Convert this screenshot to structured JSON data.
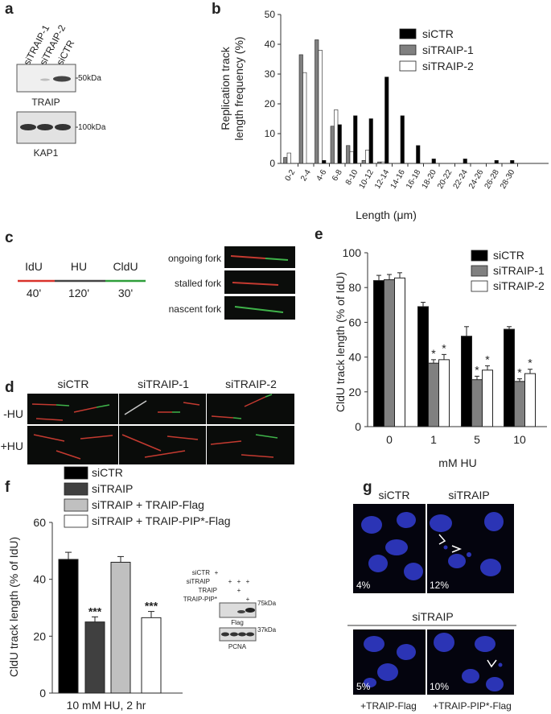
{
  "panel_labels": {
    "a": "a",
    "b": "b",
    "c": "c",
    "d": "d",
    "e": "e",
    "f": "f",
    "g": "g"
  },
  "panel_a": {
    "lanes": [
      "siTRAIP-1",
      "siTRAIP-2",
      "siCTR"
    ],
    "blot1": {
      "label": "TRAIP",
      "marker": "50kDa"
    },
    "blot2": {
      "label": "KAP1",
      "marker": "100kDa"
    }
  },
  "panel_c": {
    "segments": [
      "IdU",
      "HU",
      "CldU"
    ],
    "times": [
      "40'",
      "120'",
      "30'"
    ],
    "fork_labels": [
      "ongoing fork",
      "stalled fork",
      "nascent fork"
    ],
    "colors": {
      "idu": "#d9322b",
      "hu": "#444444",
      "cldu": "#2e9e3a"
    }
  },
  "panel_d": {
    "columns": [
      "siCTR",
      "siTRAIP-1",
      "siTRAIP-2"
    ],
    "rows": [
      "-HU",
      "+HU"
    ]
  },
  "panel_g": {
    "top_labels": [
      "siCTR",
      "siTRAIP"
    ],
    "top_pcts": [
      "4%",
      "12%"
    ],
    "bottom_header": "siTRAIP",
    "bottom_pcts": [
      "5%",
      "10%"
    ],
    "bottom_labels": [
      "+TRAIP-Flag",
      "+TRAIP-PIP*-Flag"
    ]
  },
  "panel_f_blot": {
    "rows": [
      {
        "label": "siCTR",
        "marks": [
          "+",
          "",
          "",
          ""
        ]
      },
      {
        "label": "siTRAIP",
        "marks": [
          "",
          "+",
          "+",
          "+"
        ]
      },
      {
        "label": "TRAIP",
        "marks": [
          "",
          "",
          "+",
          ""
        ]
      },
      {
        "label": "TRAIP-PIP*",
        "marks": [
          "",
          "",
          "",
          "+"
        ]
      }
    ],
    "blot1": {
      "label": "Flag",
      "marker": "75kDa"
    },
    "blot2": {
      "label": "PCNA",
      "marker": "37kDa"
    }
  },
  "chart_data": [
    {
      "id": "b",
      "type": "bar",
      "xlabel": "Length (μm)",
      "ylabel": "Replication track length frequency (%)",
      "ylabel_lines": [
        "Replication track",
        "length frequency (%)"
      ],
      "ylim": [
        0,
        50
      ],
      "yticks": [
        0,
        10,
        20,
        30,
        40,
        50
      ],
      "categories": [
        "0-2",
        "2-4",
        "4-6",
        "6-8",
        "8-10",
        "10-12",
        "12-14",
        "14-16",
        "16-18",
        "18-20",
        "20-22",
        "22-24",
        "24-26",
        "26-28",
        "28-30"
      ],
      "series": [
        {
          "name": "siCTR",
          "color": "#000000",
          "values": [
            0,
            0,
            1,
            13,
            16,
            15,
            29,
            16,
            6,
            1.5,
            0,
            1.5,
            0,
            1,
            1
          ]
        },
        {
          "name": "siTRAIP-1",
          "color": "#808080",
          "values": [
            2,
            36.5,
            41.5,
            12.5,
            6,
            1,
            0.5,
            0,
            0,
            0,
            0,
            0,
            0,
            0,
            0
          ]
        },
        {
          "name": "siTRAIP-2",
          "color": "#ffffff",
          "values": [
            3.5,
            30.5,
            38,
            18,
            4,
            4.5,
            0.5,
            0,
            0,
            0,
            0,
            0,
            0,
            0,
            0
          ]
        }
      ],
      "legend": "right"
    },
    {
      "id": "e",
      "type": "bar",
      "xlabel": "mM HU",
      "ylabel": "CldU track length (% of IdU)",
      "ylim": [
        0,
        100
      ],
      "yticks": [
        0,
        20,
        40,
        60,
        80,
        100
      ],
      "categories": [
        "0",
        "1",
        "5",
        "10"
      ],
      "series": [
        {
          "name": "siCTR",
          "color": "#000000",
          "values": [
            84,
            69,
            52,
            56
          ],
          "errors": [
            3,
            2.5,
            5.5,
            1.5
          ],
          "stars": [
            "",
            "",
            "",
            ""
          ]
        },
        {
          "name": "siTRAIP-1",
          "color": "#808080",
          "values": [
            84.5,
            36.5,
            27,
            26
          ],
          "errors": [
            3,
            2,
            2,
            1.5
          ],
          "stars": [
            "",
            "*",
            "*",
            "*"
          ]
        },
        {
          "name": "siTRAIP-2",
          "color": "#ffffff",
          "values": [
            85.5,
            38.5,
            32.5,
            30.5
          ],
          "errors": [
            3,
            3,
            2.5,
            2.5
          ],
          "stars": [
            "",
            "*",
            "*",
            "*"
          ]
        }
      ],
      "legend": "top-right"
    },
    {
      "id": "f",
      "type": "bar",
      "xlabel": "10 mM HU, 2 hr",
      "ylabel": "CldU track length (% of IdU)",
      "ylim": [
        0,
        60
      ],
      "yticks": [
        0,
        20,
        40,
        60
      ],
      "categories": [
        "siCTR",
        "siTRAIP",
        "siTRAIP + TRAIP-Flag",
        "siTRAIP + TRAIP-PIP*-Flag"
      ],
      "values": [
        47,
        25,
        46,
        26.5
      ],
      "errors": [
        2.5,
        1.8,
        2,
        2.2
      ],
      "colors": [
        "#000000",
        "#404040",
        "#c0c0c0",
        "#ffffff"
      ],
      "stars": [
        "",
        "***",
        "",
        "***"
      ],
      "legend": "top"
    }
  ]
}
